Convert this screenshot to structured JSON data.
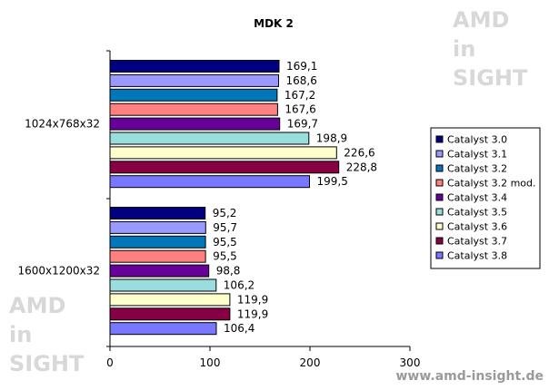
{
  "watermark": {
    "lines": [
      "AMD",
      "in",
      "SIGHT"
    ],
    "site": "www.amd-insight.de"
  },
  "chart_data": {
    "type": "bar",
    "orientation": "horizontal",
    "title": "MDK 2",
    "xlabel": "",
    "ylabel": "",
    "xlim": [
      0,
      300
    ],
    "xticks": [
      0,
      100,
      200,
      300
    ],
    "grid": false,
    "legend_position": "right",
    "categories": [
      "1024x768x32",
      "1600x1200x32"
    ],
    "series": [
      {
        "name": "Catalyst 3.0",
        "color": "#000080",
        "values": [
          169.1,
          95.2
        ],
        "labels": [
          "169,1",
          "95,2"
        ]
      },
      {
        "name": "Catalyst 3.1",
        "color": "#9999ff",
        "values": [
          168.6,
          95.7
        ],
        "labels": [
          "168,6",
          "95,7"
        ]
      },
      {
        "name": "Catalyst 3.2",
        "color": "#0077bb",
        "values": [
          167.2,
          95.5
        ],
        "labels": [
          "167,2",
          "95,5"
        ]
      },
      {
        "name": "Catalyst 3.2 mod.",
        "color": "#ff8080",
        "values": [
          167.6,
          95.5
        ],
        "labels": [
          "167,6",
          "95,5"
        ]
      },
      {
        "name": "Catalyst 3.4",
        "color": "#660099",
        "values": [
          169.7,
          98.8
        ],
        "labels": [
          "169,7",
          "98,8"
        ]
      },
      {
        "name": "Catalyst 3.5",
        "color": "#99dddd",
        "values": [
          198.9,
          106.2
        ],
        "labels": [
          "198,9",
          "106,2"
        ]
      },
      {
        "name": "Catalyst 3.6",
        "color": "#ffffcc",
        "values": [
          226.6,
          119.9
        ],
        "labels": [
          "226,6",
          "119,9"
        ]
      },
      {
        "name": "Catalyst 3.7",
        "color": "#880044",
        "values": [
          228.8,
          119.9
        ],
        "labels": [
          "228,8",
          "119,9"
        ]
      },
      {
        "name": "Catalyst 3.8",
        "color": "#7777ff",
        "values": [
          199.5,
          106.4
        ],
        "labels": [
          "199,5",
          "106,4"
        ]
      }
    ]
  }
}
